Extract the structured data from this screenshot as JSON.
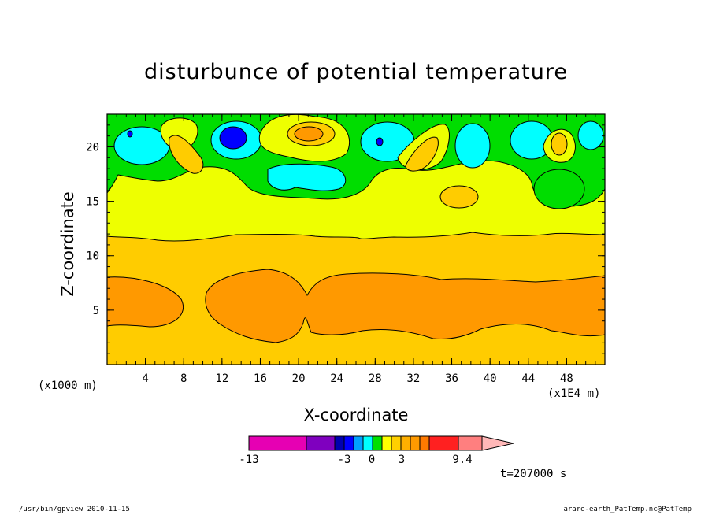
{
  "page": {
    "title": "disturbunce of potential temperature",
    "time_text": "t=207000 s",
    "footer_left": "/usr/bin/gpview   2010-11-15",
    "footer_right": "arare-earth_PatTemp.nc@PatTemp"
  },
  "chart_data": {
    "type": "heatmap",
    "title": "disturbunce of potential temperature",
    "xlabel": "X-coordinate",
    "ylabel": "Z-coordinate",
    "x_unit_left": "(x1000 m)",
    "x_unit_right": "(x1E4 m)",
    "xlim": [
      0,
      52
    ],
    "ylim": [
      0,
      23
    ],
    "x_ticks": [
      4,
      8,
      12,
      16,
      20,
      24,
      28,
      32,
      36,
      40,
      44,
      48
    ],
    "y_ticks": [
      5,
      10,
      15,
      20
    ],
    "colors": {
      "below_3": "#ffcc00",
      "band_3_6": "#ff9900",
      "band_0_15": "#eeff00",
      "band_neg": "#00dd00",
      "band_cyan": "#00ffff",
      "band_blue": "#0000ff",
      "band_gold": "#ffb000"
    },
    "colorbar": {
      "labels": [
        "-13",
        "-3",
        "0",
        "3",
        "9.4"
      ],
      "colors": [
        "#e600b3",
        "#7f00bf",
        "#0000b0",
        "#0000ff",
        "#00a0ff",
        "#00ffff",
        "#00e000",
        "#ffff00",
        "#ffd000",
        "#ffb000",
        "#ff9a00",
        "#ff7a00",
        "#ff2020",
        "#ff7f7f",
        "#ffb8b8"
      ]
    }
  }
}
